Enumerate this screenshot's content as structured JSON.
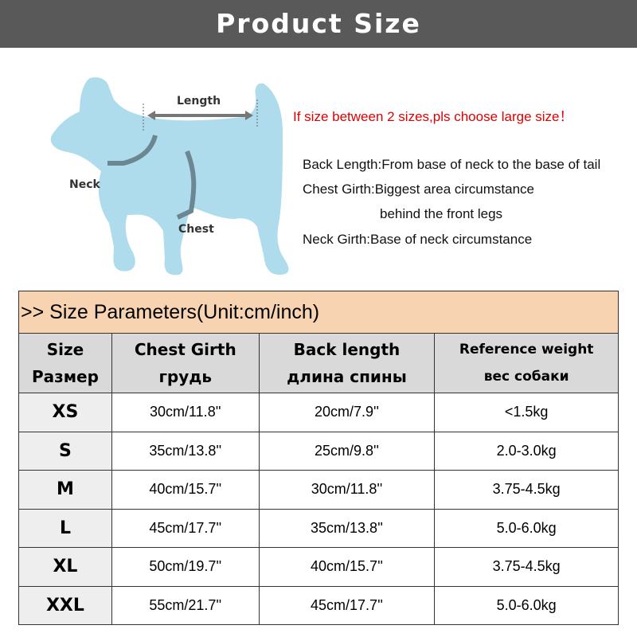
{
  "banner": {
    "title": "Product Size"
  },
  "diagram": {
    "length": "Length",
    "neck": "Neck",
    "chest": "Chest",
    "dog_color": "#aedcec"
  },
  "notes": {
    "warning": "If size between 2 sizes,pls choose large size！",
    "back": "Back Length:From base of neck to the base of tail",
    "chest1": "Chest Girth:Biggest area circumstance",
    "chest2": "behind the front legs",
    "neck": "Neck Girth:Base of neck circumstance"
  },
  "table": {
    "title": ">> Size Parameters(Unit:cm/inch)",
    "headers": [
      {
        "en": "Size",
        "ru": "Размер"
      },
      {
        "en": "Chest Girth",
        "ru": "грудь"
      },
      {
        "en": "Back length",
        "ru": "длина спины"
      },
      {
        "en": "Reference weight",
        "ru": "вес собаки"
      }
    ],
    "rows": [
      [
        "XS",
        "30cm/11.8''",
        "20cm/7.9''",
        "<1.5kg"
      ],
      [
        "S",
        "35cm/13.8''",
        "25cm/9.8''",
        "2.0-3.0kg"
      ],
      [
        "M",
        "40cm/15.7''",
        "30cm/11.8''",
        "3.75-4.5kg"
      ],
      [
        "L",
        "45cm/17.7''",
        "35cm/13.8''",
        "5.0-6.0kg"
      ],
      [
        "XL",
        "50cm/19.7''",
        "40cm/15.7''",
        "3.75-4.5kg"
      ],
      [
        "XXL",
        "55cm/21.7''",
        "45cm/17.7''",
        "5.0-6.0kg"
      ]
    ]
  }
}
